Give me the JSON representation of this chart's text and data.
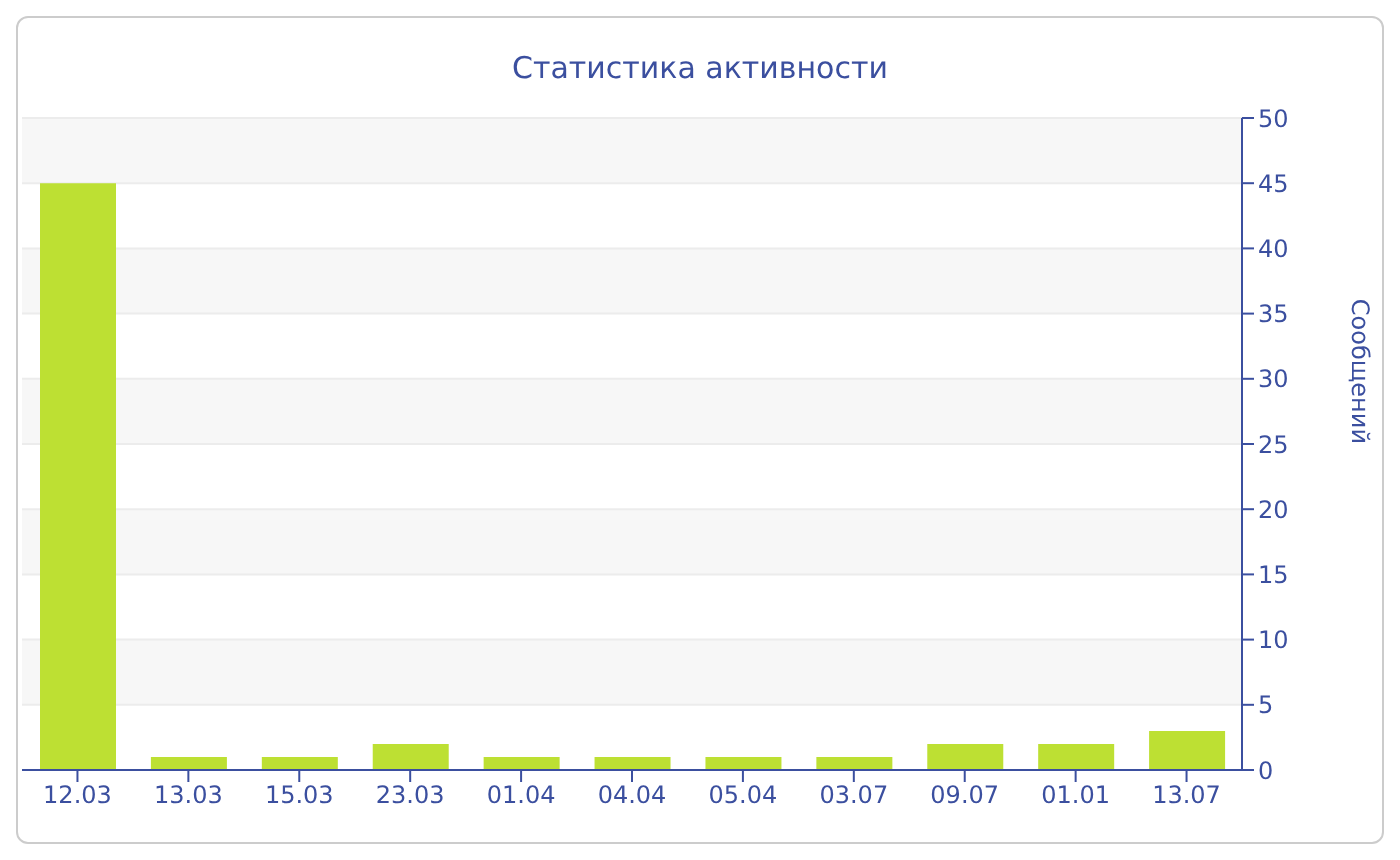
{
  "chart_data": {
    "type": "bar",
    "title": "Статистика активности",
    "ylabel": "Сообщений",
    "categories": [
      "12.03",
      "13.03",
      "15.03",
      "23.03",
      "01.04",
      "04.04",
      "05.04",
      "03.07",
      "09.07",
      "01.01",
      "13.07"
    ],
    "values": [
      45,
      1,
      1,
      2,
      1,
      1,
      1,
      1,
      2,
      2,
      3
    ],
    "color": "#bde033",
    "ylim": [
      0,
      50
    ],
    "yticks": [
      0,
      5,
      10,
      15,
      20,
      25,
      30,
      35,
      40,
      45,
      50
    ],
    "grid": "y"
  }
}
